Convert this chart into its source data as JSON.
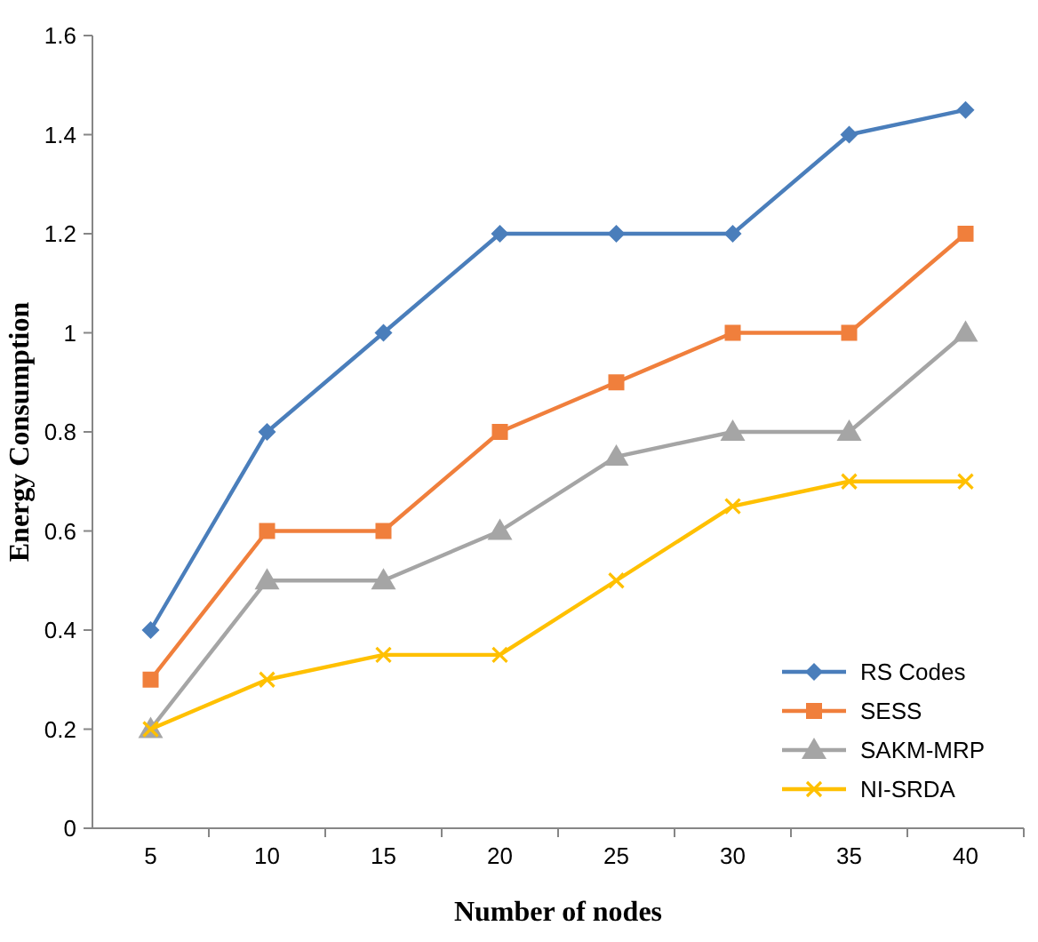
{
  "chart_data": {
    "type": "line",
    "xlabel": "Number of nodes",
    "ylabel": "Energy Consumption",
    "categories": [
      "5",
      "10",
      "15",
      "20",
      "25",
      "30",
      "35",
      "40"
    ],
    "series": [
      {
        "name": "RS Codes",
        "color": "#4a7ebb",
        "marker": "diamond",
        "values": [
          0.4,
          0.8,
          1.0,
          1.2,
          1.2,
          1.2,
          1.4,
          1.45
        ]
      },
      {
        "name": "SESS",
        "color": "#f07f3c",
        "marker": "square",
        "values": [
          0.3,
          0.6,
          0.6,
          0.8,
          0.9,
          1.0,
          1.0,
          1.2
        ]
      },
      {
        "name": "SAKM-MRP",
        "color": "#a5a5a5",
        "marker": "triangle",
        "values": [
          0.2,
          0.5,
          0.5,
          0.6,
          0.75,
          0.8,
          0.8,
          1.0
        ]
      },
      {
        "name": "NI-SRDA",
        "color": "#ffc000",
        "marker": "cross",
        "values": [
          0.2,
          0.3,
          0.35,
          0.35,
          0.5,
          0.65,
          0.7,
          0.7
        ]
      }
    ],
    "ylim": [
      0,
      1.6
    ],
    "yticks": [
      0,
      0.2,
      0.4,
      0.6,
      0.8,
      1,
      1.2,
      1.4,
      1.6
    ],
    "grid": false,
    "legend": "bottom right",
    "line_style": "solid"
  }
}
